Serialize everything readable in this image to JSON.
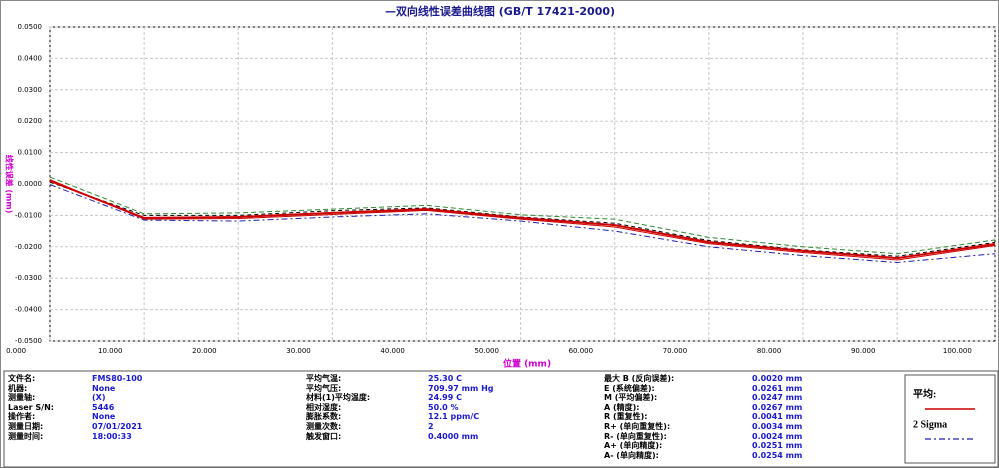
{
  "chart_data": {
    "type": "line",
    "title": "—双向线性误差曲线图  (GB/T 17421-2000)",
    "x_label": "位置 (mm)",
    "y_label": "线性误差 (mm)",
    "x": [
      3.6,
      13.6,
      23.6,
      33.6,
      43.6,
      53.6,
      63.6,
      73.6,
      83.6,
      93.6,
      104.0
    ],
    "series": [
      {
        "name": "平均:",
        "color": "#cc0000",
        "dash": "none",
        "values": [
          0.001,
          -0.0108,
          -0.0105,
          -0.0092,
          -0.008,
          -0.0108,
          -0.0131,
          -0.0185,
          -0.0213,
          -0.0236,
          -0.0191
        ]
      },
      {
        "name": "2 Sigma",
        "color": "#2020b0",
        "dash": "6 3 2 3",
        "values": [
          -0.0002,
          -0.0115,
          -0.0118,
          -0.0105,
          -0.0095,
          -0.0118,
          -0.015,
          -0.02,
          -0.0228,
          -0.025,
          -0.0222
        ]
      },
      {
        "color": "#2e8b2e",
        "dash": "5 3",
        "values": [
          0.0022,
          -0.0095,
          -0.0092,
          -0.008,
          -0.0068,
          -0.0098,
          -0.0112,
          -0.017,
          -0.02,
          -0.0222,
          -0.0178
        ]
      },
      {
        "color": "#000000",
        "dash": "4 3",
        "values": [
          0.0006,
          -0.01,
          -0.01,
          -0.0085,
          -0.0076,
          -0.0105,
          -0.0125,
          -0.018,
          -0.021,
          -0.023,
          -0.0186
        ]
      },
      {
        "color": "#cc0000",
        "dash": "none",
        "values": [
          0.0014,
          -0.0112,
          -0.011,
          -0.0097,
          -0.0084,
          -0.0112,
          -0.0137,
          -0.019,
          -0.0218,
          -0.0242,
          -0.0196
        ]
      }
    ],
    "xlim": [
      3.6,
      104.0
    ],
    "ylim": [
      -0.05,
      0.05
    ],
    "xticks": [
      {
        "value": 0,
        "label": "0.000"
      },
      {
        "value": 10,
        "label": "10.000"
      },
      {
        "value": 20,
        "label": "20.000"
      },
      {
        "value": 30,
        "label": "30.000"
      },
      {
        "value": 40,
        "label": "40.000"
      },
      {
        "value": 50,
        "label": "50.000"
      },
      {
        "value": 60,
        "label": "60.000"
      },
      {
        "value": 70,
        "label": "70.000"
      },
      {
        "value": 80,
        "label": "80.000"
      },
      {
        "value": 90,
        "label": "90.000"
      },
      {
        "value": 100,
        "label": "100.000"
      }
    ],
    "yticks": [
      {
        "value": 0.05,
        "label": "0.0500"
      },
      {
        "value": 0.04,
        "label": "0.0400"
      },
      {
        "value": 0.03,
        "label": "0.0300"
      },
      {
        "value": 0.02,
        "label": "0.0200"
      },
      {
        "value": 0.01,
        "label": "0.0100"
      },
      {
        "value": 0,
        "label": "0.0000"
      },
      {
        "value": -0.01,
        "label": "-0.0100"
      },
      {
        "value": -0.02,
        "label": "-0.0200"
      },
      {
        "value": -0.03,
        "label": "-0.0300"
      },
      {
        "value": -0.04,
        "label": "-0.0400"
      },
      {
        "value": -0.05,
        "label": "-0.0500"
      }
    ],
    "grid": true
  },
  "info": {
    "col1": [
      [
        "文件名:",
        "FMS80-100"
      ],
      [
        "机器:",
        "None"
      ],
      [
        "测量轴:",
        "(X)"
      ],
      [
        "Laser S/N:",
        "5446"
      ],
      [
        "操作者:",
        "None"
      ],
      [
        "测量日期:",
        "07/01/2021"
      ],
      [
        "测量时间:",
        "18:00:33"
      ]
    ],
    "col2": [
      [
        "平均气温:",
        "25.30 C"
      ],
      [
        "平均气压:",
        "709.97 mm Hg"
      ],
      [
        "材料(1)平均温度:",
        "24.99 C"
      ],
      [
        "相对湿度:",
        "50.0 %"
      ],
      [
        "膨胀系数:",
        "12.1 ppm/C"
      ],
      [
        "测量次数:",
        "2"
      ],
      [
        "触发窗口:",
        "0.4000 mm"
      ]
    ],
    "col3": [
      [
        "最大 B (反向误差):",
        "0.0020 mm"
      ],
      [
        "E (系统偏差):",
        "0.0261 mm"
      ],
      [
        "M (平均偏差):",
        "0.0247 mm"
      ],
      [
        "A (精度):",
        "0.0267 mm"
      ],
      [
        "R (重复性):",
        "0.0041 mm"
      ],
      [
        "R+ (单向重复性):",
        "0.0034 mm"
      ],
      [
        "R- (单向重复性):",
        "0.0024 mm"
      ],
      [
        "A+ (单向精度):",
        "0.0251 mm"
      ],
      [
        "A- (单向精度):",
        "0.0254 mm"
      ]
    ]
  }
}
